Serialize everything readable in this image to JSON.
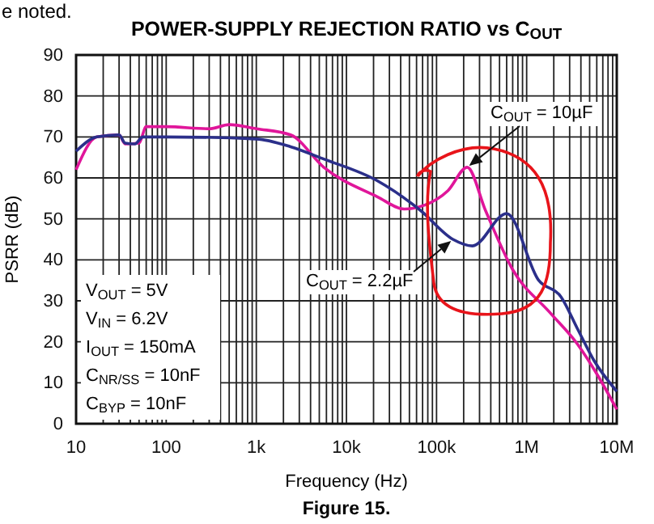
{
  "chart_data": {
    "type": "line",
    "title": "POWER-SUPPLY REJECTION RATIO vs C$_{OUT}$",
    "xlabel": "Frequency (Hz)",
    "ylabel": "PSRR (dB)",
    "log": "x",
    "grid": true,
    "marker": "none",
    "line_style": "solid",
    "xlim": [
      10,
      10000000
    ],
    "ylim": [
      0,
      90
    ],
    "xticks": [
      10,
      100,
      {
        "value": 1000,
        "label": "1k"
      },
      {
        "value": 10000,
        "label": "10k"
      },
      {
        "value": 100000,
        "label": "100k"
      },
      {
        "value": 1000000,
        "label": "1M"
      },
      {
        "value": 10000000,
        "label": "10M"
      }
    ],
    "yticks": [
      0,
      10,
      20,
      30,
      40,
      50,
      60,
      70,
      80,
      90
    ],
    "series": [
      {
        "color": "#e0169a",
        "x": [
          10,
          17,
          30,
          35,
          50,
          60,
          100,
          300,
          500,
          1000,
          2400,
          5600,
          22000,
          44000,
          75000,
          134000,
          219000,
          350000,
          700000,
          1800000,
          3700000,
          6300000,
          10000000
        ],
        "values": [
          62,
          70,
          70.5,
          68.3,
          68.5,
          72.5,
          72.5,
          72,
          73,
          72,
          70.5,
          62.6,
          55.4,
          52.4,
          53.4,
          56.9,
          62.6,
          52,
          37.6,
          27.2,
          19.3,
          11.4,
          3.5
        ]
      },
      {
        "color": "#2b2f8a",
        "x": [
          10,
          17,
          30,
          35,
          45,
          55,
          100,
          1000,
          2400,
          5600,
          22000,
          66000,
          152000,
          250000,
          600000,
          1360000,
          2400000,
          3700000,
          5600000,
          10000000
        ],
        "values": [
          66.5,
          70,
          70.5,
          68.5,
          68.3,
          70,
          70,
          69.5,
          67.6,
          64.6,
          59.3,
          52.1,
          45,
          43.4,
          51.3,
          35,
          31,
          23,
          15.4,
          7.9
        ]
      }
    ],
    "annotations": [
      "e noted.",
      "V$_{OUT}$ = 5V",
      "V$_{IN}$ = 6.2V",
      "I$_{OUT}$ = 150mA",
      "C$_{NR/SS}$ = 10nF",
      "C$_{BYP}$ = 10nF",
      "Figure 15.",
      {
        "text": "C$_{OUT}$ = 10µF",
        "x": 219000,
        "y": 62.6
      },
      {
        "text": "C$_{OUT}$ = 2.2µF",
        "x": 152000,
        "y": 45
      }
    ]
  }
}
